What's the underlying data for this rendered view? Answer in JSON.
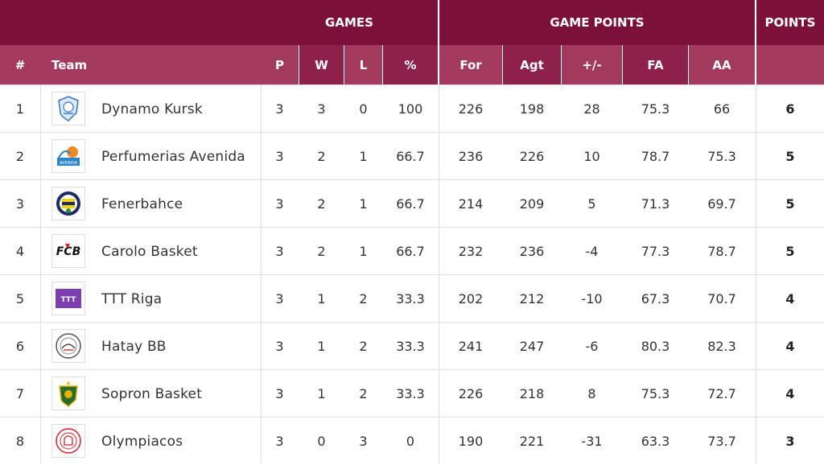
{
  "colors": {
    "header_dark": "#7c1138",
    "header_light": "#a13a5c",
    "text": "#333333"
  },
  "header": {
    "games": "GAMES",
    "game_points": "GAME POINTS",
    "points": "POINTS",
    "cols": {
      "rank": "#",
      "team": "Team",
      "p": "P",
      "w": "W",
      "l": "L",
      "pct": "%",
      "for": "For",
      "agt": "Agt",
      "diff": "+/-",
      "fa": "FA",
      "aa": "AA"
    }
  },
  "rows": [
    {
      "rank": "1",
      "team": "Dynamo Kursk",
      "logo": "dynamo-kursk-logo",
      "p": "3",
      "w": "3",
      "l": "0",
      "pct": "100",
      "for": "226",
      "agt": "198",
      "diff": "28",
      "fa": "75.3",
      "aa": "66",
      "pts": "6"
    },
    {
      "rank": "2",
      "team": "Perfumerias Avenida",
      "logo": "perfumerias-avenida-logo",
      "p": "3",
      "w": "2",
      "l": "1",
      "pct": "66.7",
      "for": "236",
      "agt": "226",
      "diff": "10",
      "fa": "78.7",
      "aa": "75.3",
      "pts": "5"
    },
    {
      "rank": "3",
      "team": "Fenerbahce",
      "logo": "fenerbahce-logo",
      "p": "3",
      "w": "2",
      "l": "1",
      "pct": "66.7",
      "for": "214",
      "agt": "209",
      "diff": "5",
      "fa": "71.3",
      "aa": "69.7",
      "pts": "5"
    },
    {
      "rank": "4",
      "team": "Carolo Basket",
      "logo": "carolo-basket-logo",
      "p": "3",
      "w": "2",
      "l": "1",
      "pct": "66.7",
      "for": "232",
      "agt": "236",
      "diff": "-4",
      "fa": "77.3",
      "aa": "78.7",
      "pts": "5"
    },
    {
      "rank": "5",
      "team": "TTT Riga",
      "logo": "ttt-riga-logo",
      "p": "3",
      "w": "1",
      "l": "2",
      "pct": "33.3",
      "for": "202",
      "agt": "212",
      "diff": "-10",
      "fa": "67.3",
      "aa": "70.7",
      "pts": "4"
    },
    {
      "rank": "6",
      "team": "Hatay BB",
      "logo": "hatay-bb-logo",
      "p": "3",
      "w": "1",
      "l": "2",
      "pct": "33.3",
      "for": "241",
      "agt": "247",
      "diff": "-6",
      "fa": "80.3",
      "aa": "82.3",
      "pts": "4"
    },
    {
      "rank": "7",
      "team": "Sopron Basket",
      "logo": "sopron-basket-logo",
      "p": "3",
      "w": "1",
      "l": "2",
      "pct": "33.3",
      "for": "226",
      "agt": "218",
      "diff": "8",
      "fa": "75.3",
      "aa": "72.7",
      "pts": "4"
    },
    {
      "rank": "8",
      "team": "Olympiacos",
      "logo": "olympiacos-logo",
      "p": "3",
      "w": "0",
      "l": "3",
      "pct": "0",
      "for": "190",
      "agt": "221",
      "diff": "-31",
      "fa": "63.3",
      "aa": "73.7",
      "pts": "3"
    }
  ]
}
